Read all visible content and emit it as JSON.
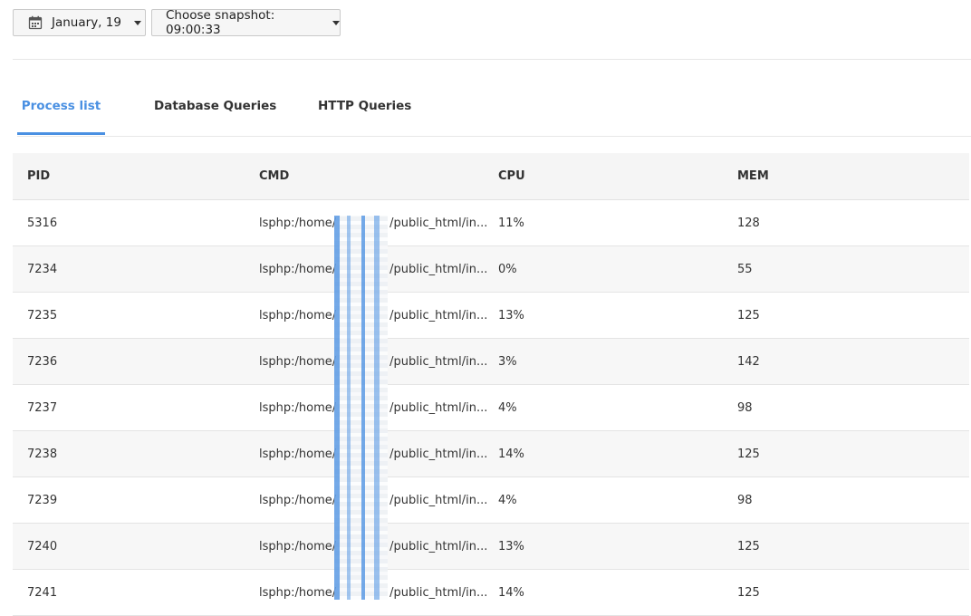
{
  "toolbar": {
    "date_label": "January, 19",
    "snapshot_label": "Choose snapshot: 09:00:33"
  },
  "tabs": [
    {
      "label": "Process list",
      "active": true
    },
    {
      "label": "Database Queries",
      "active": false
    },
    {
      "label": "HTTP Queries",
      "active": false
    }
  ],
  "table": {
    "headers": {
      "pid": "PID",
      "cmd": "CMD",
      "cpu": "CPU",
      "mem": "MEM"
    },
    "rows": [
      {
        "pid": "5316",
        "cmd_prefix": "lsphp:/home/",
        "cmd_suffix": "/public_html/in...",
        "cpu": "11%",
        "mem": "128"
      },
      {
        "pid": "7234",
        "cmd_prefix": "lsphp:/home/",
        "cmd_suffix": "/public_html/in...",
        "cpu": "0%",
        "mem": "55"
      },
      {
        "pid": "7235",
        "cmd_prefix": "lsphp:/home/",
        "cmd_suffix": "/public_html/in...",
        "cpu": "13%",
        "mem": "125"
      },
      {
        "pid": "7236",
        "cmd_prefix": "lsphp:/home/",
        "cmd_suffix": "/public_html/in...",
        "cpu": "3%",
        "mem": "142"
      },
      {
        "pid": "7237",
        "cmd_prefix": "lsphp:/home/",
        "cmd_suffix": "/public_html/in...",
        "cpu": "4%",
        "mem": "98"
      },
      {
        "pid": "7238",
        "cmd_prefix": "lsphp:/home/",
        "cmd_suffix": "/public_html/in...",
        "cpu": "14%",
        "mem": "125"
      },
      {
        "pid": "7239",
        "cmd_prefix": "lsphp:/home/",
        "cmd_suffix": "/public_html/in...",
        "cpu": "4%",
        "mem": "98"
      },
      {
        "pid": "7240",
        "cmd_prefix": "lsphp:/home/",
        "cmd_suffix": "/public_html/in...",
        "cpu": "13%",
        "mem": "125"
      },
      {
        "pid": "7241",
        "cmd_prefix": "lsphp:/home/",
        "cmd_suffix": "/public_html/in...",
        "cpu": "14%",
        "mem": "125"
      }
    ]
  },
  "colors": {
    "accent": "#4a90e2",
    "header_bg": "#f5f5f5",
    "alt_row_bg": "#f7f7f7"
  },
  "icons": {
    "date_picker": "calendar-icon",
    "dropdown": "caret-down-icon"
  }
}
